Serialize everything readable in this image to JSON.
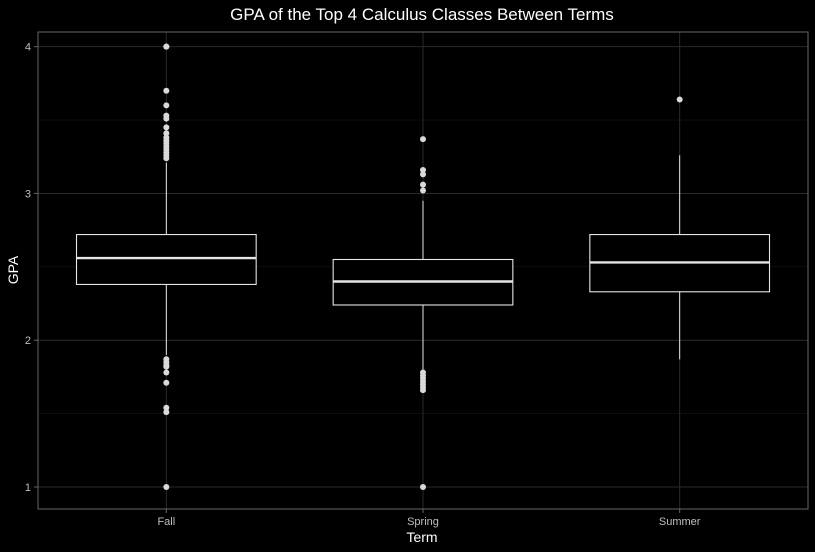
{
  "chart_data": {
    "type": "boxplot",
    "title": "GPA of the Top 4 Calculus Classes Between Terms",
    "xlabel": "Term",
    "ylabel": "GPA",
    "ylim": [
      0.85,
      4.1
    ],
    "yticks": [
      1,
      2,
      3,
      4
    ],
    "grid": true,
    "categories": [
      "Fall",
      "Spring",
      "Summer"
    ],
    "boxes": [
      {
        "category": "Fall",
        "whisker_low": 1.9,
        "q1": 2.38,
        "median": 2.56,
        "q3": 2.72,
        "whisker_high": 3.21,
        "outliers": [
          4.0,
          4.0,
          3.7,
          3.6,
          3.53,
          3.51,
          3.45,
          3.41,
          3.38,
          3.36,
          3.34,
          3.32,
          3.3,
          3.28,
          3.26,
          3.24,
          1.87,
          1.85,
          1.83,
          1.82,
          1.78,
          1.71,
          1.54,
          1.51,
          1.0
        ]
      },
      {
        "category": "Spring",
        "whisker_low": 1.8,
        "q1": 2.24,
        "median": 2.4,
        "q3": 2.55,
        "whisker_high": 2.95,
        "outliers": [
          3.37,
          3.16,
          3.13,
          3.06,
          3.02,
          1.78,
          1.76,
          1.74,
          1.72,
          1.7,
          1.68,
          1.66,
          1.0
        ]
      },
      {
        "category": "Summer",
        "whisker_low": 1.87,
        "q1": 2.33,
        "median": 2.53,
        "q3": 2.72,
        "whisker_high": 3.26,
        "outliers": [
          3.64
        ]
      }
    ]
  },
  "colors": {
    "background": "#000000",
    "panel": "#000000",
    "grid_major": "#2a2a2a",
    "grid_minor": "#161616",
    "box_stroke": "#e6e6e6",
    "outlier": "#d9d9d9",
    "panel_border": "#666666"
  }
}
